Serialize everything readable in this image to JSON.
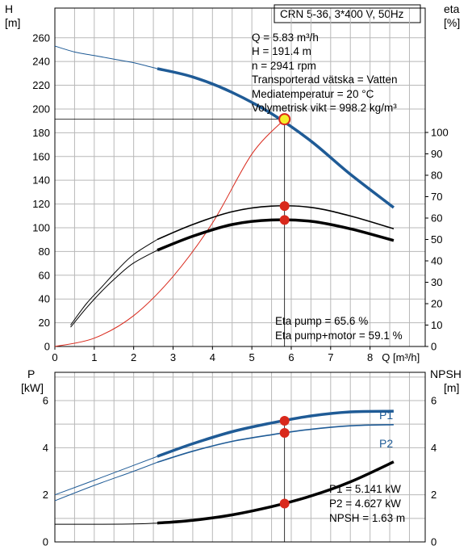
{
  "chart_data": {
    "type": "line",
    "title": "CRN 5-36, 3*400 V, 50Hz",
    "colors": {
      "blue": "#1f5b96",
      "black": "#000000",
      "red": "#d9291c",
      "op_fill": "#f5ef2b",
      "grid": "#b8b8b8"
    },
    "top": {
      "h_label": "H",
      "h_unit": "[m]",
      "eta_label": "eta",
      "eta_unit": "[%]",
      "q_label": "Q",
      "q_unit": "[m³/h]",
      "h_ticks": [
        "0",
        "20",
        "40",
        "60",
        "80",
        "100",
        "120",
        "140",
        "160",
        "180",
        "200",
        "220",
        "240",
        "260"
      ],
      "eta_ticks": [
        "0",
        "10",
        "20",
        "30",
        "40",
        "50",
        "60",
        "70",
        "80",
        "90",
        "100"
      ],
      "q_ticks": [
        "0",
        "1",
        "2",
        "3",
        "4",
        "5",
        "6",
        "7",
        "8"
      ],
      "xlim": [
        0,
        9.4
      ],
      "h_lim": [
        0,
        285
      ],
      "eta_lim": [
        0,
        100
      ],
      "info_lines": [
        "Q = 5.83 m³/h",
        "H = 191.4 m",
        "n = 2941 rpm",
        "Transporterad vätska = Vatten",
        "Mediatemperatur = 20 °C",
        "Volymetrisk vikt = 998.2 kg/m³"
      ],
      "eta_info_lines": [
        "Eta pump = 65.6 %",
        "Eta pump+motor = 59.1 %"
      ],
      "h_curve_thin": {
        "x": [
          0,
          0.5,
          1,
          1.5,
          2,
          2.6
        ],
        "y": [
          253,
          248,
          245,
          242,
          239,
          234
        ]
      },
      "h_curve_thick": {
        "x": [
          2.6,
          3.5,
          4.5,
          5.5,
          6.5,
          7.5,
          8.6
        ],
        "y": [
          234,
          227,
          214,
          196,
          173,
          145,
          117
        ]
      },
      "h_system_curve": {
        "x": [
          0,
          1,
          2,
          3,
          4,
          5,
          5.83
        ],
        "y": [
          0,
          7,
          26,
          59,
          104,
          162,
          191.4
        ]
      },
      "eta_pump_thin": {
        "x": [
          0.4,
          0.8,
          1.2,
          1.6,
          2.0,
          2.6
        ],
        "y": [
          10,
          20,
          28,
          36,
          43,
          50
        ]
      },
      "eta_pump_thick": {
        "x": [
          2.6,
          3.5,
          4.5,
          5.5,
          6.5,
          7.5,
          8.6
        ],
        "y": [
          50,
          57,
          63,
          65.6,
          65,
          61,
          55
        ]
      },
      "eta_total_thin": {
        "x": [
          0.4,
          0.8,
          1.2,
          1.6,
          2.0,
          2.6
        ],
        "y": [
          9,
          18,
          26,
          33,
          39,
          45
        ]
      },
      "eta_total_thick": {
        "x": [
          2.6,
          3.5,
          4.5,
          5.5,
          6.5,
          7.5,
          8.6
        ],
        "y": [
          45,
          51.5,
          57,
          59.1,
          58.5,
          55,
          49.5
        ]
      },
      "op_point": {
        "q": 5.83,
        "h": 191.4,
        "eta_pump": 65.6,
        "eta_total": 59.1
      }
    },
    "bottom": {
      "p_label": "P",
      "p_unit": "[kW]",
      "npsh_label": "NPSH",
      "npsh_unit": "[m]",
      "p_ticks": [
        "0",
        "2",
        "4",
        "6"
      ],
      "npsh_ticks": [
        "0",
        "2",
        "4",
        "6"
      ],
      "ylim": [
        0,
        7.2
      ],
      "series_labels": [
        "P1",
        "P2"
      ],
      "info_lines": [
        "P1 = 5.141 kW",
        "P2 = 4.627 kW",
        "NPSH = 1.63 m"
      ],
      "p1_thin": {
        "x": [
          0,
          1,
          2,
          2.6
        ],
        "y": [
          2.0,
          2.62,
          3.25,
          3.63
        ]
      },
      "p1_thick": {
        "x": [
          2.6,
          3.5,
          4.5,
          5.5,
          6.5,
          7.5,
          8.6
        ],
        "y": [
          3.63,
          4.17,
          4.68,
          5.05,
          5.35,
          5.52,
          5.55
        ]
      },
      "p2_thin": {
        "x": [
          0,
          1,
          2,
          2.6
        ],
        "y": [
          1.75,
          2.4,
          3.0,
          3.38
        ]
      },
      "p2_thick": {
        "x": [
          2.6,
          3.5,
          4.5,
          5.5,
          6.5,
          7.5,
          8.6
        ],
        "y": [
          3.38,
          3.85,
          4.27,
          4.55,
          4.78,
          4.93,
          4.98
        ]
      },
      "npsh_thin": {
        "x": [
          0,
          1,
          2,
          2.6
        ],
        "y": [
          0.75,
          0.75,
          0.76,
          0.8
        ]
      },
      "npsh_thick": {
        "x": [
          2.6,
          3.5,
          4.5,
          5.5,
          6.5,
          7.5,
          8.6
        ],
        "y": [
          0.8,
          0.92,
          1.15,
          1.5,
          1.95,
          2.55,
          3.4
        ]
      },
      "op_point": {
        "q": 5.83,
        "p1": 5.141,
        "p2": 4.627,
        "npsh": 1.63
      }
    }
  }
}
